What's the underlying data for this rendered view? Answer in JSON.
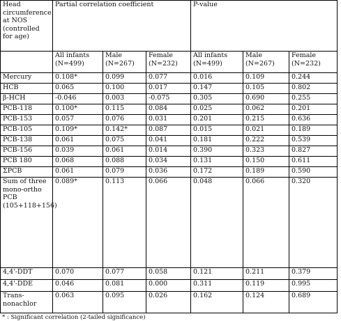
{
  "header": {
    "row_label": "Head circumference at NOS (controlled for age)",
    "group1": "Partial correlation coefficient",
    "group2": "P-value",
    "subheaders": [
      "All infants (N=499)",
      "Male (N=267)",
      "Female (N=232)",
      "All infants (N=499)",
      "Male (N=267)",
      "Female (N=232)"
    ]
  },
  "rows": [
    {
      "label": "Mercury",
      "values": [
        "0.108*",
        "0.099",
        "0.077",
        "0.016",
        "0.109",
        "0.244"
      ]
    },
    {
      "label": "HCB",
      "values": [
        "0.065",
        "0.100",
        "0.017",
        "0.147",
        "0.105",
        "0.802"
      ]
    },
    {
      "label": "β-HCH",
      "values": [
        "-0.046",
        "0.003",
        "-0.075",
        "0.305",
        "0.690",
        "0.255"
      ]
    },
    {
      "label": "PCB-118",
      "values": [
        "0.100*",
        "0.115",
        "0.084",
        "0.025",
        "0.062",
        "0.201"
      ]
    },
    {
      "label": "PCB-153",
      "values": [
        "0.057",
        "0.076",
        "0.031",
        "0.201",
        "0.215",
        "0.636"
      ]
    },
    {
      "label": "PCB-105",
      "values": [
        "0.109*",
        "0.142*",
        "0.087",
        "0.015",
        "0.021",
        "0.189"
      ]
    },
    {
      "label": "PCB-138",
      "values": [
        "0.061",
        "0.075",
        "0.041",
        "0.181",
        "0.222",
        "0.539"
      ]
    },
    {
      "label": "PCB-156",
      "values": [
        "0.039",
        "0.061",
        "0.014",
        "0.390",
        "0.323",
        "0.827"
      ]
    },
    {
      "label": "PCB 180",
      "values": [
        "0.068",
        "0.088",
        "0.034",
        "0.131",
        "0.150",
        "0.611"
      ]
    },
    {
      "label": "ΣPCB",
      "values": [
        "0.061",
        "0.079",
        "0.036",
        "0.172",
        "0.189",
        "0.590"
      ]
    },
    {
      "label": "Sum of three mono-ortho PCB (105+118+156)",
      "values": [
        "0.089*",
        "0.113",
        "0.066",
        "0.048",
        "0.066",
        "0.320"
      ]
    },
    {
      "label": "4,4'-DDT",
      "values": [
        "0.070",
        "0.077",
        "0.058",
        "0.121",
        "0.211",
        "0.379"
      ]
    },
    {
      "label": "4,4'-DDE",
      "values": [
        "0.046",
        "0.081",
        "0.000",
        "0.311",
        "0.119",
        "0.995"
      ]
    },
    {
      "label": "Trans-nonachlor",
      "values": [
        "0.063",
        "0.095",
        "0.026",
        "0.162",
        "0.124",
        "0.689"
      ]
    }
  ],
  "footnote": "* : Significant correlation (2-tailed significance)"
}
